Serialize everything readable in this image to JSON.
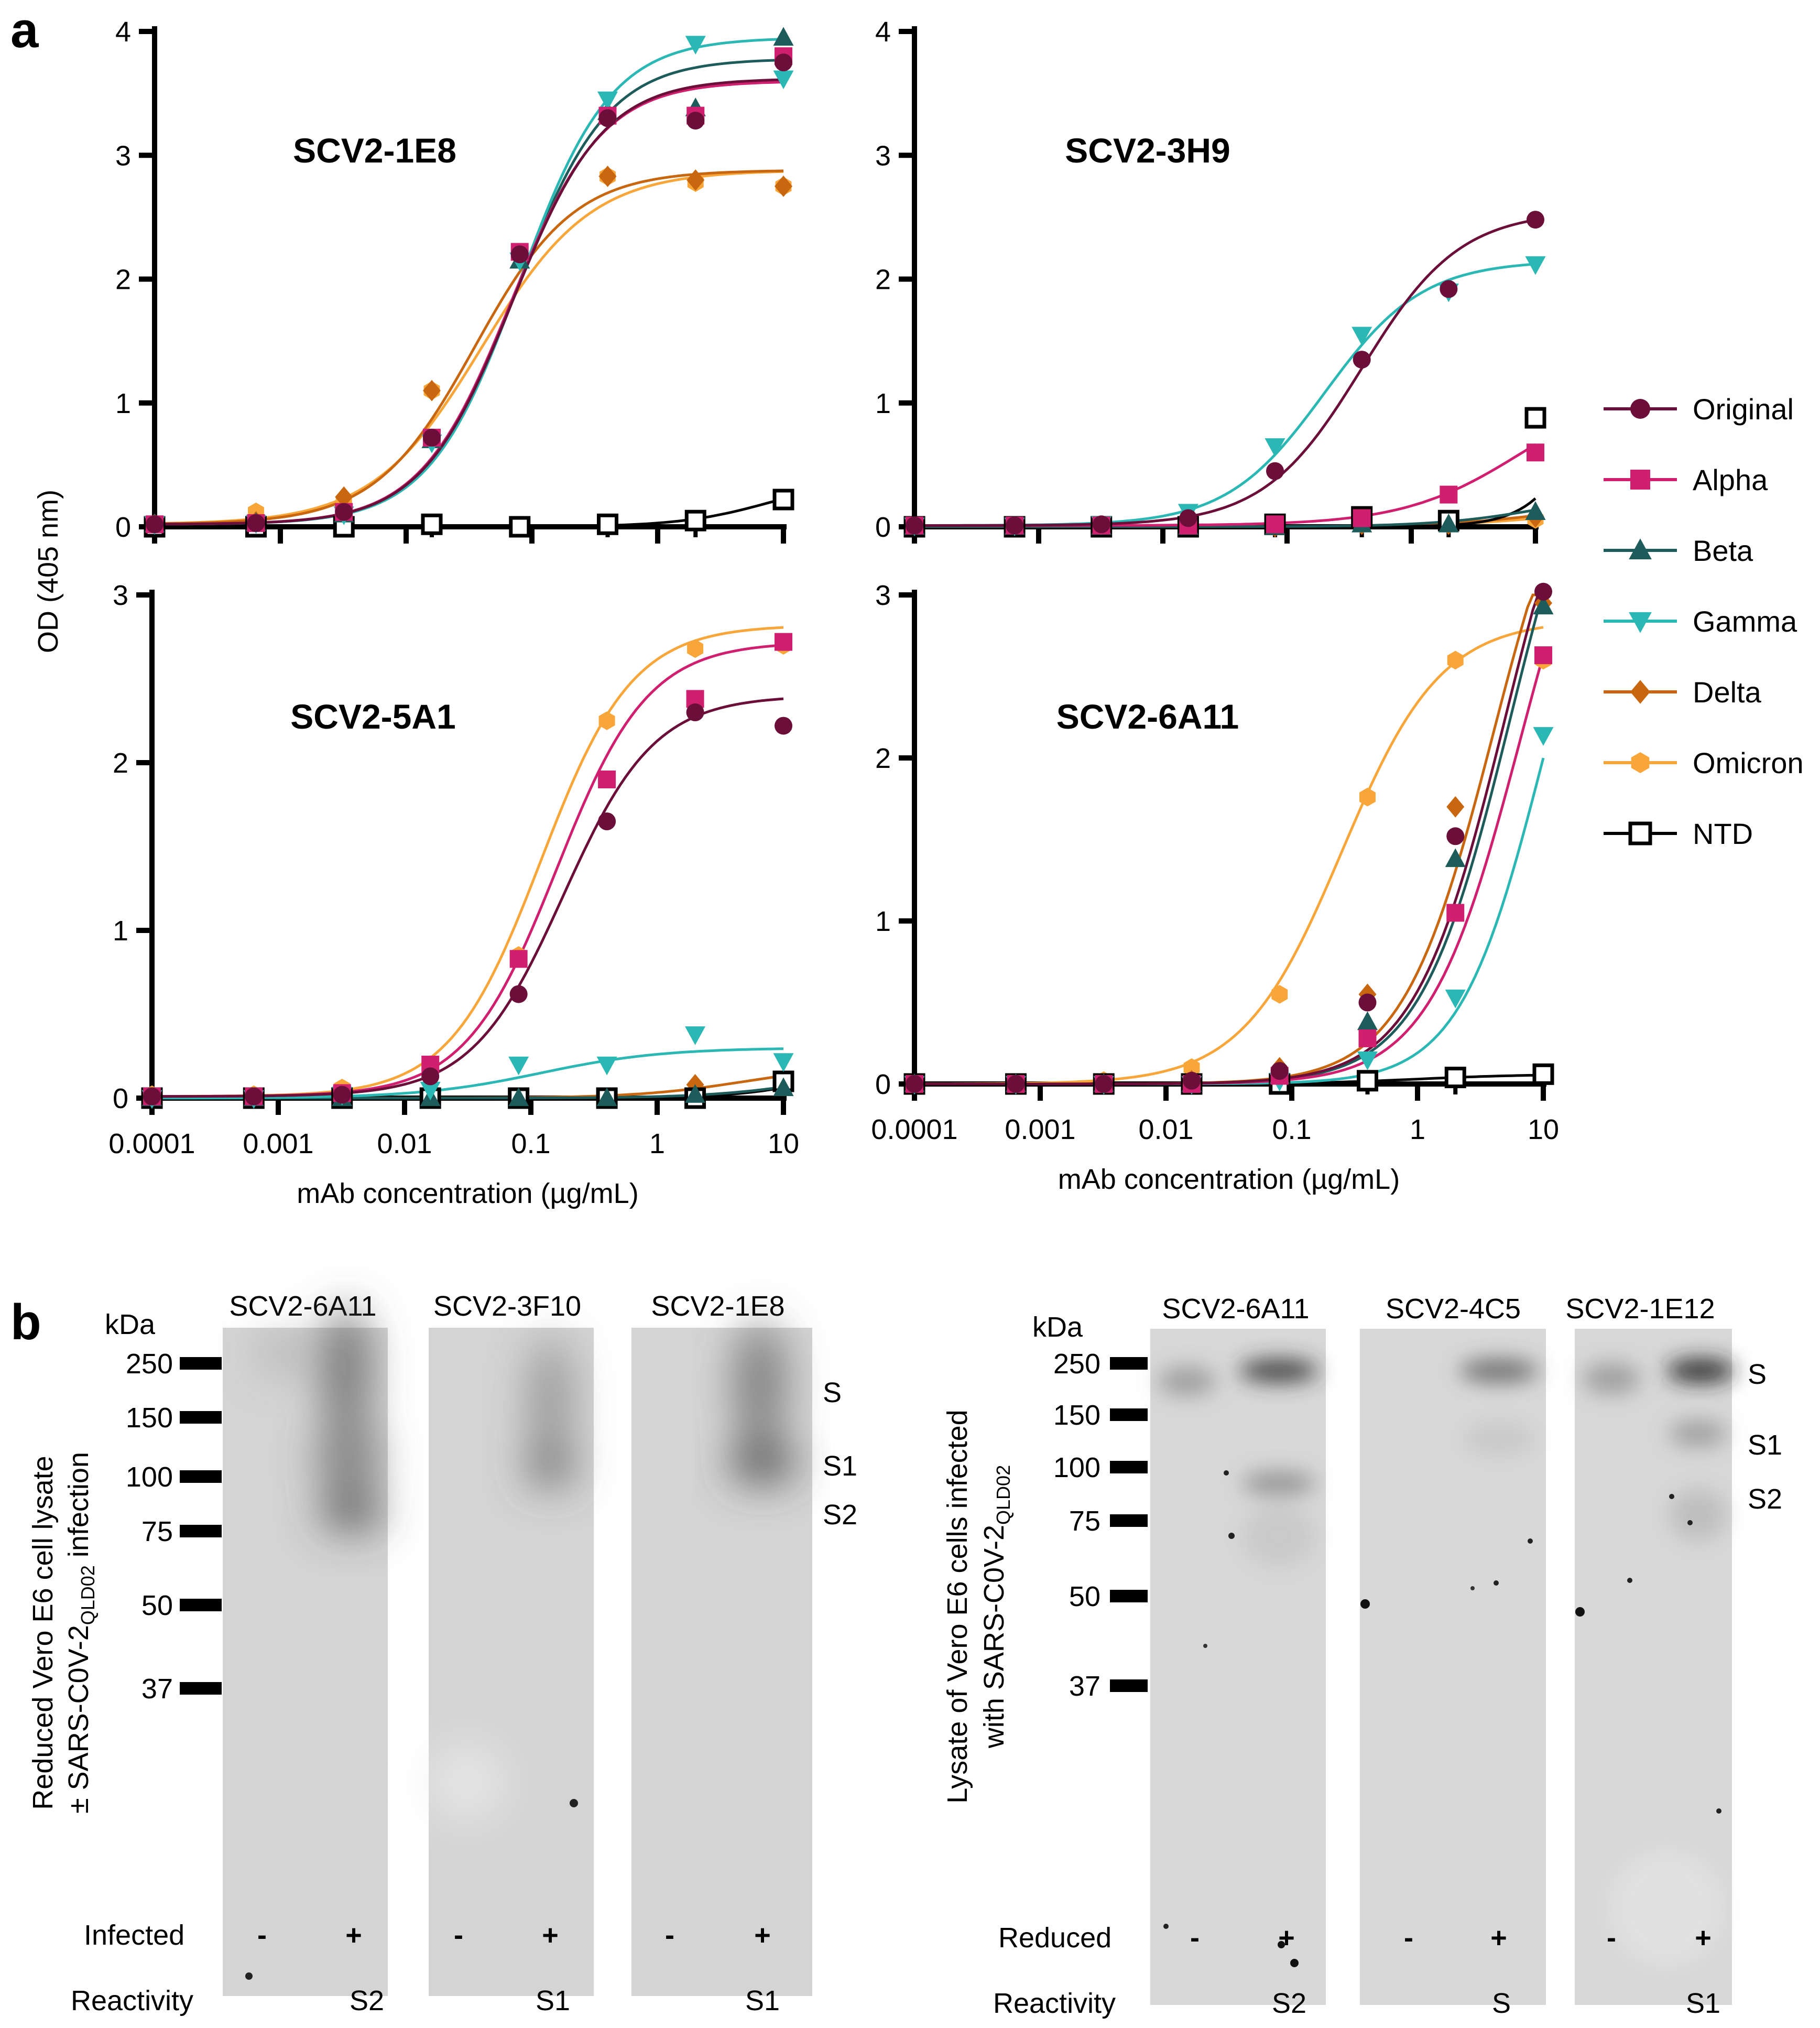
{
  "panel_a": {
    "letter": "a",
    "y_axis_label": "OD (405 nm)",
    "x_axis_label": "mAb concentration (µg/mL)"
  },
  "panel_b": {
    "letter": "b"
  },
  "colors": {
    "Original": "#6b0f3a",
    "Alpha": "#d01f6e",
    "Beta": "#1d5c5a",
    "Gamma": "#2bb7b3",
    "Delta": "#c8670f",
    "Omicron": "#f8a63a",
    "NTD": "#000000"
  },
  "legend": [
    {
      "name": "Original",
      "marker": "circle"
    },
    {
      "name": "Alpha",
      "marker": "square"
    },
    {
      "name": "Beta",
      "marker": "triangle-up"
    },
    {
      "name": "Gamma",
      "marker": "triangle-down"
    },
    {
      "name": "Delta",
      "marker": "diamond"
    },
    {
      "name": "Omicron",
      "marker": "hexagon"
    },
    {
      "name": "NTD",
      "marker": "open-square"
    }
  ],
  "chart_data": [
    {
      "type": "scatter",
      "title": "SCV2-1E8",
      "xlabel": "",
      "ylabel": "OD (405 nm)",
      "xscale": "log",
      "xlim": [
        0.0001,
        10
      ],
      "ylim": [
        0,
        4
      ],
      "yticks": [
        0,
        1,
        2,
        3,
        4
      ],
      "x": [
        0.0001,
        0.00064,
        0.0032,
        0.016,
        0.08,
        0.4,
        2,
        10
      ],
      "series": [
        {
          "name": "Original",
          "values": [
            0.02,
            0.03,
            0.12,
            0.72,
            2.2,
            3.3,
            3.28,
            3.75
          ],
          "curve": {
            "bottom": 0.02,
            "top": 3.62,
            "ec50": 0.07,
            "hill": 1.2
          }
        },
        {
          "name": "Alpha",
          "values": [
            0.02,
            0.03,
            0.12,
            0.72,
            2.22,
            3.32,
            3.32,
            3.8
          ],
          "curve": {
            "bottom": 0.02,
            "top": 3.6,
            "ec50": 0.068,
            "hill": 1.2
          }
        },
        {
          "name": "Beta",
          "values": [
            0.02,
            0.03,
            0.1,
            0.7,
            2.15,
            3.35,
            3.38,
            3.95
          ],
          "curve": {
            "bottom": 0.02,
            "top": 3.78,
            "ec50": 0.075,
            "hill": 1.2
          }
        },
        {
          "name": "Gamma",
          "values": [
            0.02,
            0.03,
            0.1,
            0.68,
            2.15,
            3.45,
            3.9,
            3.62
          ],
          "curve": {
            "bottom": 0.02,
            "top": 3.95,
            "ec50": 0.08,
            "hill": 1.2
          }
        },
        {
          "name": "Delta",
          "values": [
            0.02,
            0.04,
            0.24,
            1.1,
            2.2,
            2.83,
            2.8,
            2.75
          ],
          "curve": {
            "bottom": 0.02,
            "top": 2.88,
            "ec50": 0.035,
            "hill": 1.1
          }
        },
        {
          "name": "Omicron",
          "values": [
            0.02,
            0.12,
            0.2,
            1.1,
            2.2,
            2.83,
            2.78,
            2.75
          ],
          "curve": {
            "bottom": 0.02,
            "top": 2.88,
            "ec50": 0.04,
            "hill": 1.0
          }
        },
        {
          "name": "NTD",
          "values": [
            0.0,
            0.0,
            0.0,
            0.02,
            0.0,
            0.02,
            0.05,
            0.22
          ],
          "curve": {
            "bottom": 0.0,
            "top": 0.4,
            "ec50": 8,
            "hill": 1.2
          }
        }
      ]
    },
    {
      "type": "scatter",
      "title": "SCV2-3H9",
      "xlabel": "",
      "ylabel": "",
      "xscale": "log",
      "xlim": [
        0.0001,
        10
      ],
      "ylim": [
        0,
        4
      ],
      "yticks": [
        0,
        1,
        2,
        3,
        4
      ],
      "x": [
        0.0001,
        0.00064,
        0.0032,
        0.016,
        0.08,
        0.4,
        2,
        10
      ],
      "series": [
        {
          "name": "Original",
          "values": [
            0.01,
            0.01,
            0.02,
            0.07,
            0.45,
            1.35,
            1.92,
            2.48
          ],
          "curve": {
            "bottom": 0.01,
            "top": 2.55,
            "ec50": 0.4,
            "hill": 1.1
          }
        },
        {
          "name": "Alpha",
          "values": [
            0.01,
            0.01,
            0.01,
            0.01,
            0.02,
            0.07,
            0.26,
            0.6
          ],
          "curve": {
            "bottom": 0.01,
            "top": 1.2,
            "ec50": 8,
            "hill": 0.9
          }
        },
        {
          "name": "Beta",
          "values": [
            0.0,
            0.0,
            0.0,
            0.0,
            0.0,
            0.02,
            0.02,
            0.12
          ],
          "curve": {
            "bottom": 0.0,
            "top": 0.3,
            "ec50": 12,
            "hill": 1.0
          }
        },
        {
          "name": "Gamma",
          "values": [
            0.01,
            0.01,
            0.02,
            0.12,
            0.65,
            1.55,
            1.9,
            2.12
          ],
          "curve": {
            "bottom": 0.01,
            "top": 2.15,
            "ec50": 0.2,
            "hill": 1.1
          }
        },
        {
          "name": "Delta",
          "values": [
            0.0,
            0.0,
            0.0,
            0.0,
            0.0,
            0.02,
            0.02,
            0.08
          ],
          "curve": {
            "bottom": 0.0,
            "top": 0.2,
            "ec50": 12,
            "hill": 1.0
          }
        },
        {
          "name": "Omicron",
          "values": [
            0.0,
            0.0,
            0.0,
            0.0,
            0.0,
            0.02,
            0.02,
            0.06
          ],
          "curve": {
            "bottom": 0.0,
            "top": 0.15,
            "ec50": 12,
            "hill": 1.0
          }
        },
        {
          "name": "NTD",
          "values": [
            0.0,
            0.0,
            0.0,
            0.0,
            0.02,
            0.08,
            0.05,
            0.88
          ],
          "curve": {
            "bottom": 0.0,
            "top": 3,
            "ec50": 40,
            "hill": 1.8
          }
        }
      ]
    },
    {
      "type": "scatter",
      "title": "SCV2-5A1",
      "xlabel": "mAb concentration (µg/mL)",
      "ylabel": "OD (405 nm)",
      "xscale": "log",
      "xlim": [
        0.0001,
        10
      ],
      "ylim": [
        0,
        3
      ],
      "yticks": [
        0,
        1,
        2,
        3
      ],
      "xtick_labels": [
        "0.0001",
        "0.001",
        "0.01",
        "0.1",
        "1",
        "10"
      ],
      "x": [
        0.0001,
        0.00064,
        0.0032,
        0.016,
        0.08,
        0.4,
        2,
        10
      ],
      "series": [
        {
          "name": "Original",
          "values": [
            0.01,
            0.01,
            0.02,
            0.13,
            0.62,
            1.65,
            2.3,
            2.22
          ],
          "curve": {
            "bottom": 0.01,
            "top": 2.4,
            "ec50": 0.18,
            "hill": 1.2
          }
        },
        {
          "name": "Alpha",
          "values": [
            0.01,
            0.01,
            0.03,
            0.2,
            0.83,
            1.9,
            2.38,
            2.72
          ],
          "curve": {
            "bottom": 0.01,
            "top": 2.72,
            "ec50": 0.16,
            "hill": 1.2
          }
        },
        {
          "name": "Beta",
          "values": [
            0.0,
            0.0,
            0.0,
            0.0,
            0.0,
            0.0,
            0.02,
            0.06
          ],
          "curve": {
            "bottom": 0.0,
            "top": 0.2,
            "ec50": 20,
            "hill": 1.0
          }
        },
        {
          "name": "Gamma",
          "values": [
            0.0,
            0.0,
            0.02,
            0.05,
            0.2,
            0.2,
            0.38,
            0.22
          ],
          "curve": {
            "bottom": 0.0,
            "top": 0.3,
            "ec50": 0.12,
            "hill": 0.9
          }
        },
        {
          "name": "Delta",
          "values": [
            0.0,
            0.0,
            0.0,
            0.0,
            0.0,
            0.0,
            0.08,
            0.1
          ],
          "curve": {
            "bottom": 0.0,
            "top": 0.2,
            "ec50": 5,
            "hill": 1.0
          }
        },
        {
          "name": "Omicron",
          "values": [
            0.02,
            0.02,
            0.06,
            0.2,
            0.85,
            2.25,
            2.68,
            2.7
          ],
          "curve": {
            "bottom": 0.01,
            "top": 2.82,
            "ec50": 0.12,
            "hill": 1.2
          }
        },
        {
          "name": "NTD",
          "values": [
            0.0,
            0.0,
            0.0,
            0.0,
            0.0,
            0.0,
            0.0,
            0.1
          ],
          "curve": {
            "bottom": 0.0,
            "top": 0.3,
            "ec50": 30,
            "hill": 1.2
          }
        }
      ]
    },
    {
      "type": "scatter",
      "title": "SCV2-6A11",
      "xlabel": "mAb concentration (µg/mL)",
      "ylabel": "",
      "xscale": "log",
      "xlim": [
        0.0001,
        10
      ],
      "ylim": [
        0,
        3
      ],
      "yticks": [
        0,
        1,
        2,
        3
      ],
      "xtick_labels": [
        "0.0001",
        "0.001",
        "0.01",
        "0.1",
        "1",
        "10"
      ],
      "x": [
        0.0001,
        0.00064,
        0.0032,
        0.016,
        0.08,
        0.4,
        2,
        10
      ],
      "series": [
        {
          "name": "Original",
          "values": [
            0.0,
            0.0,
            0.0,
            0.02,
            0.08,
            0.5,
            1.52,
            3.02
          ],
          "curve": {
            "bottom": 0.0,
            "top": 4.5,
            "ec50": 5,
            "hill": 1.2
          }
        },
        {
          "name": "Alpha",
          "values": [
            0.0,
            0.0,
            0.0,
            0.0,
            0.05,
            0.28,
            1.05,
            2.63
          ],
          "curve": {
            "bottom": 0.0,
            "top": 4.2,
            "ec50": 6.5,
            "hill": 1.2
          }
        },
        {
          "name": "Beta",
          "values": [
            0.0,
            0.0,
            0.0,
            0.0,
            0.05,
            0.38,
            1.38,
            2.93
          ],
          "curve": {
            "bottom": 0.0,
            "top": 4.5,
            "ec50": 5.5,
            "hill": 1.2
          }
        },
        {
          "name": "Gamma",
          "values": [
            0.0,
            0.0,
            0.0,
            0.0,
            0.02,
            0.15,
            0.53,
            2.14
          ],
          "curve": {
            "bottom": 0.0,
            "top": 4.0,
            "ec50": 10,
            "hill": 1.3
          }
        },
        {
          "name": "Delta",
          "values": [
            0.0,
            0.0,
            0.0,
            0.02,
            0.1,
            0.55,
            1.7,
            2.95
          ],
          "curve": {
            "bottom": 0.0,
            "top": 4.3,
            "ec50": 4,
            "hill": 1.2
          }
        },
        {
          "name": "Omicron",
          "values": [
            0.0,
            0.0,
            0.02,
            0.1,
            0.55,
            1.76,
            2.6,
            2.6
          ],
          "curve": {
            "bottom": 0.0,
            "top": 2.85,
            "ec50": 0.25,
            "hill": 1.1
          }
        },
        {
          "name": "NTD",
          "values": [
            0.0,
            0.0,
            0.0,
            0.0,
            0.0,
            0.02,
            0.04,
            0.06
          ],
          "curve": {
            "bottom": 0.0,
            "top": 0.06,
            "ec50": 1,
            "hill": 1.0
          }
        }
      ]
    }
  ],
  "blot_left": {
    "side_label_line1": "Reduced Vero E6 cell lysate",
    "side_label_line2_prefix": "± SARS-C0V-2",
    "side_label_line2_subscript": "QLD02",
    "side_label_line2_suffix": " infection",
    "kda_label": "kDa",
    "markers": [
      "250",
      "150",
      "100",
      "75",
      "50",
      "37"
    ],
    "band_labels": [
      "S",
      "S1",
      "S2"
    ],
    "panels": [
      {
        "title": "SCV2-6A11",
        "reactivity": "S2"
      },
      {
        "title": "SCV2-3F10",
        "reactivity": "S1"
      },
      {
        "title": "SCV2-1E8",
        "reactivity": "S1"
      }
    ],
    "condition_label": "Infected",
    "reactivity_label": "Reactivity",
    "minus": "-",
    "plus": "+"
  },
  "blot_right": {
    "side_label_line1": "Lysate of Vero E6 cells infected",
    "side_label_line2_prefix": "with  SARS-C0V-2",
    "side_label_line2_subscript": "QLD02",
    "kda_label": "kDa",
    "markers": [
      "250",
      "150",
      "100",
      "75",
      "50",
      "37"
    ],
    "band_labels": [
      "S",
      "S1",
      "S2"
    ],
    "panels": [
      {
        "title": "SCV2-6A11",
        "reactivity": "S2"
      },
      {
        "title": "SCV2-4C5",
        "reactivity": "S"
      },
      {
        "title": "SCV2-1E12",
        "reactivity": "S1"
      }
    ],
    "condition_label": "Reduced",
    "reactivity_label": "Reactivity",
    "minus": "-",
    "plus": "+"
  }
}
